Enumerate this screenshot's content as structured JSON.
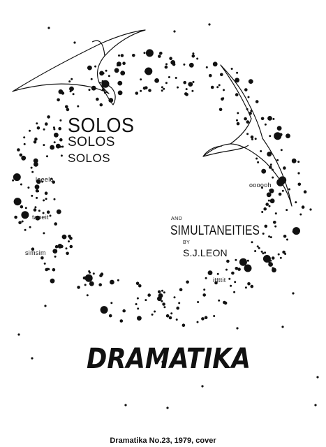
{
  "cover": {
    "title_lines": [
      "SOLOS",
      "SOLOS",
      "SOLOS"
    ],
    "sound_words": [
      "leeelo",
      "taneit",
      "simsim",
      "oooooh",
      "ittttit"
    ],
    "and_label": "AND",
    "subtitle": "SIMULTANEITIES",
    "by_label": "BY",
    "author": "S.J.LEON",
    "publication": "DRAMATIKA"
  },
  "caption": "Dramatika No.23, 1979, cover",
  "colors": {
    "ink": "#111111",
    "paper": "#ffffff"
  },
  "icons": [
    "bird-illustration",
    "dot-ring-illustration"
  ]
}
